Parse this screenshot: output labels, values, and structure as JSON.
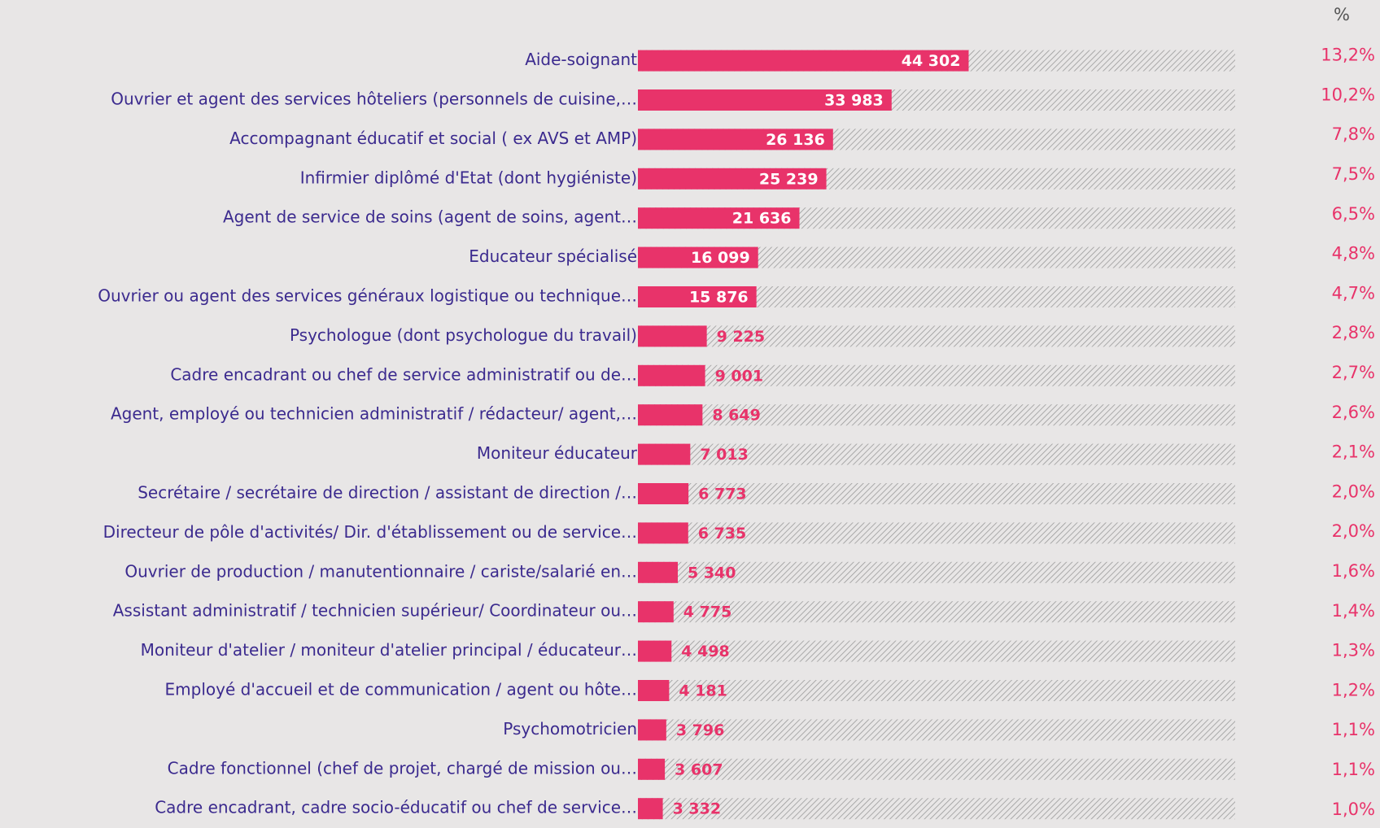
{
  "chart_data": {
    "type": "hbar",
    "percent_header": "%",
    "categories": [
      "Aide-soignant",
      "Ouvrier et agent des services hôteliers (personnels de cuisine,…",
      "Accompagnant éducatif et social ( ex AVS et AMP)",
      "Infirmier diplômé d'Etat (dont hygiéniste)",
      "Agent de service de soins (agent de soins, agent…",
      "Educateur spécialisé",
      "Ouvrier ou agent des services généraux logistique ou technique…",
      "Psychologue (dont psychologue du travail)",
      "Cadre encadrant ou chef de service administratif ou de…",
      "Agent, employé ou technicien  administratif / rédacteur/ agent,…",
      "Moniteur éducateur",
      "Secrétaire / secrétaire de direction / assistant de direction /…",
      "Directeur de pôle d'activités/ Dir. d'établissement ou de service…",
      "Ouvrier de production / manutentionnaire / cariste/salarié en…",
      "Assistant administratif / technicien supérieur/ Coordinateur ou…",
      "Moniteur d'atelier / moniteur d'atelier principal / éducateur…",
      "Employé d'accueil et de communication / agent ou hôte…",
      "Psychomotricien",
      "Cadre fonctionnel (chef de projet, chargé de mission ou…",
      "Cadre encadrant, cadre socio-éducatif ou chef de service…"
    ],
    "values": [
      44302,
      33983,
      26136,
      25239,
      21636,
      16099,
      15876,
      9225,
      9001,
      8649,
      7013,
      6773,
      6735,
      5340,
      4775,
      4498,
      4181,
      3796,
      3607,
      3332
    ],
    "value_labels": [
      "44 302",
      "33 983",
      "26 136",
      "25 239",
      "21 636",
      "16 099",
      "15 876",
      "9 225",
      "9 001",
      "8 649",
      "7 013",
      "6 773",
      "6 735",
      "5 340",
      "4 775",
      "4 498",
      "4 181",
      "3 796",
      "3 607",
      "3 332"
    ],
    "percent_values": [
      13.2,
      10.2,
      7.8,
      7.5,
      6.5,
      4.8,
      4.7,
      2.8,
      2.7,
      2.6,
      2.1,
      2.0,
      2.0,
      1.6,
      1.4,
      1.3,
      1.2,
      1.1,
      1.1,
      1.0
    ],
    "percent_labels": [
      "13,2%",
      "10,2%",
      "7,8%",
      "7,5%",
      "6,5%",
      "4,8%",
      "4,7%",
      "2,8%",
      "2,7%",
      "2,6%",
      "2,1%",
      "2,0%",
      "2,0%",
      "1,6%",
      "1,4%",
      "1,3%",
      "1,2%",
      "1,1%",
      "1,1%",
      "1,0%"
    ],
    "color": "#e8336a",
    "xlim": [
      0,
      80000
    ]
  }
}
